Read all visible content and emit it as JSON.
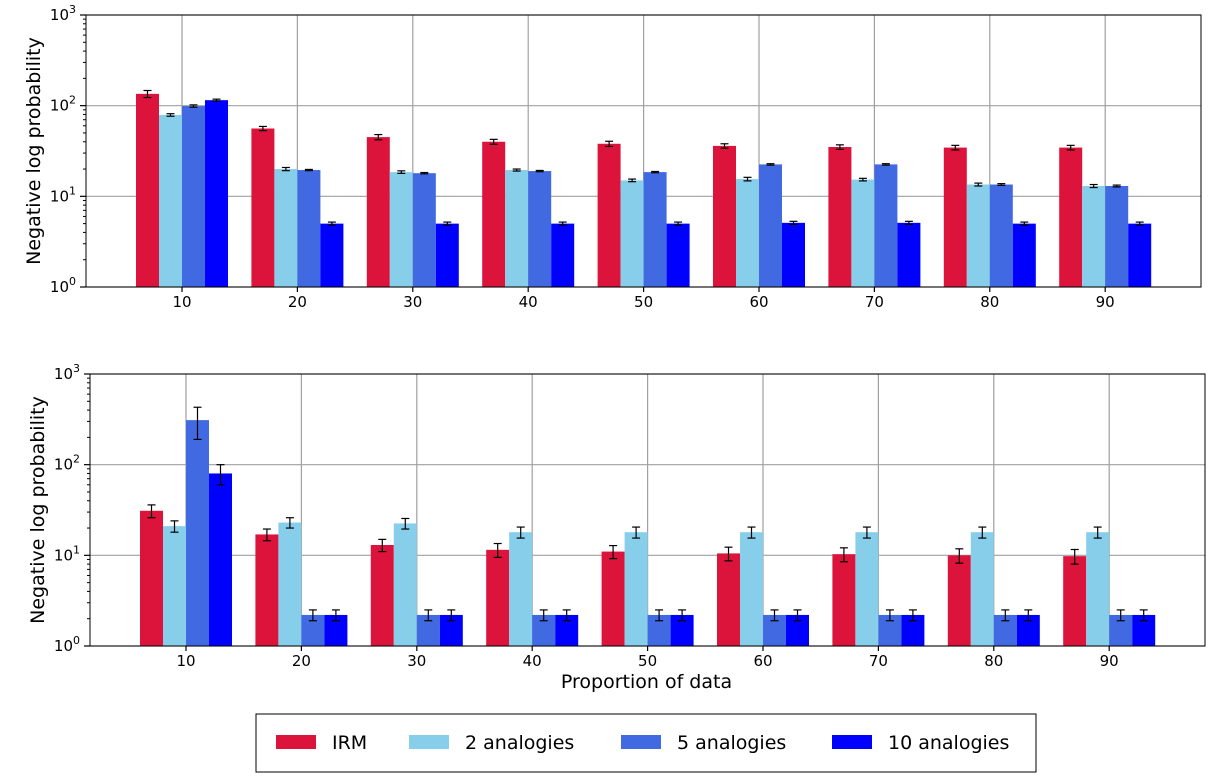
{
  "chart_data": [
    {
      "type": "bar",
      "scale": "log",
      "title": "",
      "xlabel": "",
      "ylabel": "Negative log probability",
      "ylim": [
        1,
        1000
      ],
      "yticks": [
        {
          "base": "10",
          "exp": "0"
        },
        {
          "base": "10",
          "exp": "1"
        },
        {
          "base": "10",
          "exp": "2"
        },
        {
          "base": "10",
          "exp": "3"
        }
      ],
      "grid": true,
      "categories": [
        "10",
        "20",
        "30",
        "40",
        "50",
        "60",
        "70",
        "80",
        "90"
      ],
      "series": [
        {
          "name": "IRM",
          "color": "#dc143c",
          "values": [
            135,
            56,
            45,
            40,
            38,
            36,
            35,
            34.5,
            34.5
          ],
          "errors": [
            12,
            3,
            3,
            2.5,
            2.5,
            2,
            2,
            2,
            2
          ]
        },
        {
          "name": "2 analogies",
          "color": "#87ceeb",
          "values": [
            79,
            20,
            18.5,
            19.5,
            15,
            15.5,
            15.3,
            13.5,
            13
          ],
          "errors": [
            2.5,
            0.8,
            0.6,
            0.5,
            0.5,
            0.7,
            0.5,
            0.5,
            0.5
          ]
        },
        {
          "name": "5 analogies",
          "color": "#4169e1",
          "values": [
            99,
            19.5,
            18,
            19,
            18.5,
            22.5,
            22.5,
            13.5,
            13
          ],
          "errors": [
            3,
            0.3,
            0.3,
            0.3,
            0.3,
            0.4,
            0.4,
            0.3,
            0.3
          ]
        },
        {
          "name": "10 analogies",
          "color": "#0000ff",
          "values": [
            115,
            5,
            5,
            5,
            5,
            5.1,
            5.1,
            5,
            5
          ],
          "errors": [
            3,
            0.2,
            0.2,
            0.2,
            0.2,
            0.2,
            0.2,
            0.2,
            0.2
          ]
        }
      ]
    },
    {
      "type": "bar",
      "scale": "log",
      "title": "",
      "xlabel": "Proportion of data",
      "ylabel": "Negative log probability",
      "ylim": [
        1,
        1000
      ],
      "yticks": [
        {
          "base": "10",
          "exp": "0"
        },
        {
          "base": "10",
          "exp": "1"
        },
        {
          "base": "10",
          "exp": "2"
        },
        {
          "base": "10",
          "exp": "3"
        }
      ],
      "grid": true,
      "categories": [
        "10",
        "20",
        "30",
        "40",
        "50",
        "60",
        "70",
        "80",
        "90"
      ],
      "series": [
        {
          "name": "IRM",
          "color": "#dc143c",
          "values": [
            31,
            17,
            13,
            11.5,
            11,
            10.5,
            10.3,
            10,
            9.8
          ],
          "errors": [
            5,
            2.5,
            2,
            2,
            1.8,
            1.8,
            1.8,
            1.8,
            1.8
          ]
        },
        {
          "name": "2 analogies",
          "color": "#87ceeb",
          "values": [
            21,
            23,
            22.5,
            18,
            18,
            18,
            18,
            18,
            18
          ],
          "errors": [
            3,
            3,
            3,
            2.5,
            2.5,
            2.5,
            2.5,
            2.5,
            2.5
          ]
        },
        {
          "name": "5 analogies",
          "color": "#4169e1",
          "values": [
            310,
            2.2,
            2.2,
            2.2,
            2.2,
            2.2,
            2.2,
            2.2,
            2.2
          ],
          "errors": [
            120,
            0.3,
            0.3,
            0.3,
            0.3,
            0.3,
            0.3,
            0.3,
            0.3
          ]
        },
        {
          "name": "10 analogies",
          "color": "#0000ff",
          "values": [
            80,
            2.2,
            2.2,
            2.2,
            2.2,
            2.2,
            2.2,
            2.2,
            2.2
          ],
          "errors": [
            20,
            0.3,
            0.3,
            0.3,
            0.3,
            0.3,
            0.3,
            0.3,
            0.3
          ]
        }
      ]
    }
  ],
  "legend": {
    "placement": "bottom-center",
    "entries": [
      {
        "label": "IRM",
        "color": "#dc143c"
      },
      {
        "label": "2 analogies",
        "color": "#87ceeb"
      },
      {
        "label": "5 analogies",
        "color": "#4169e1"
      },
      {
        "label": "10 analogies",
        "color": "#0000ff"
      }
    ]
  }
}
